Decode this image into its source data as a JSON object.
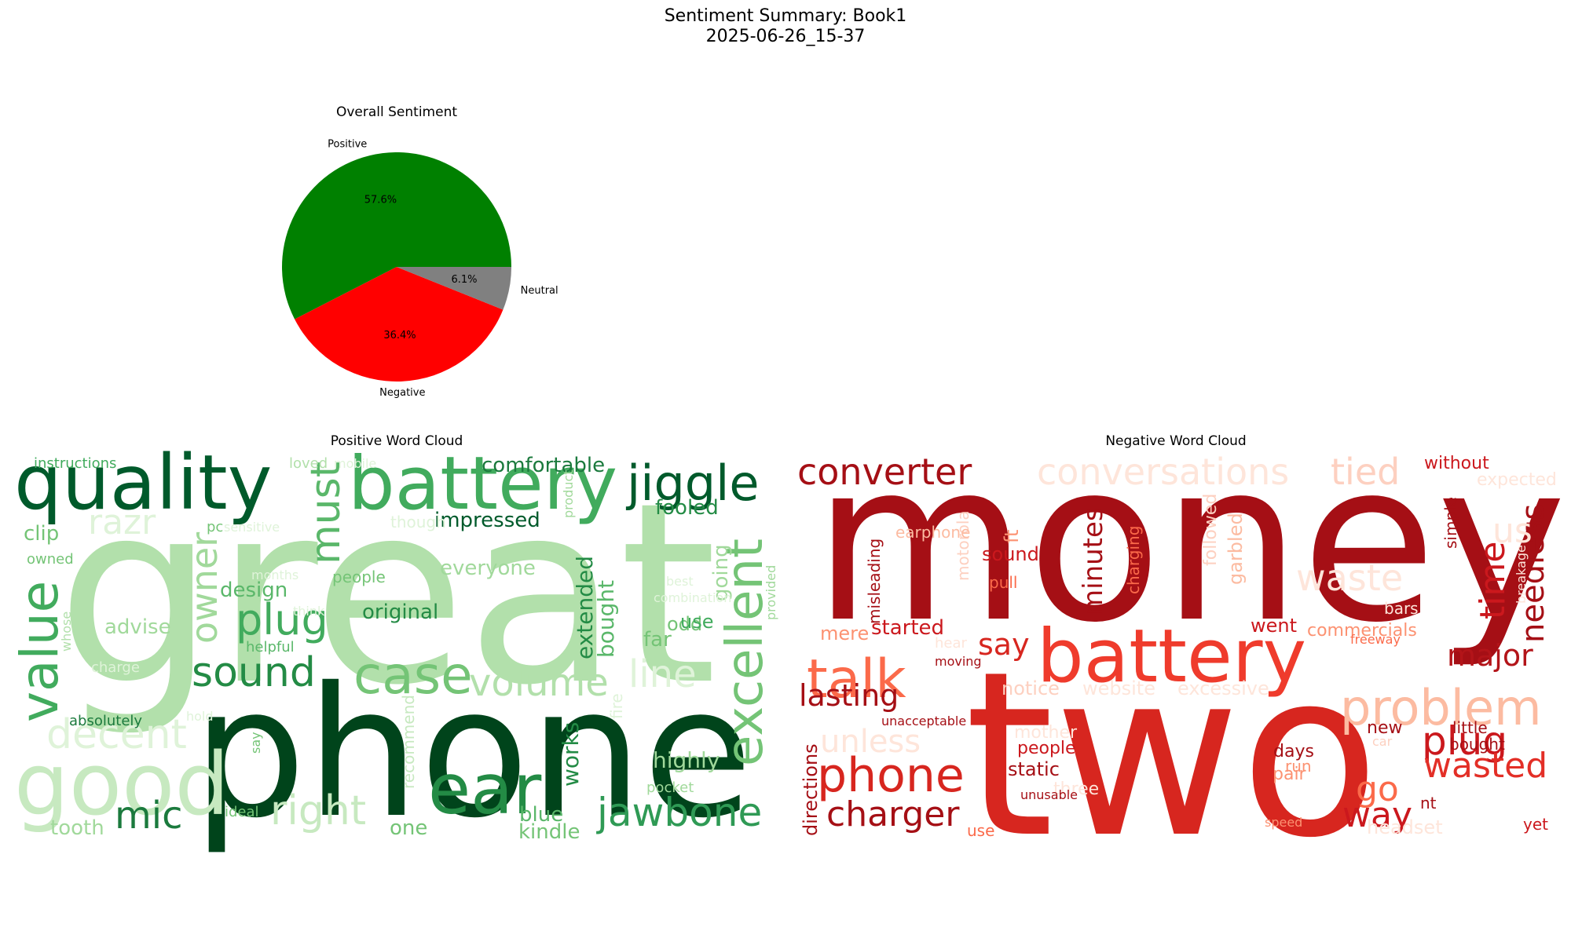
{
  "figure": {
    "title_line1": "Sentiment Summary: Book1",
    "title_line2": "2025-06-26_15-37"
  },
  "chart_data": [
    {
      "type": "pie",
      "title": "Overall Sentiment",
      "slices": [
        {
          "label": "Positive",
          "value": 57.6,
          "pct_label": "57.6%",
          "color": "#008000"
        },
        {
          "label": "Negative",
          "value": 36.4,
          "pct_label": "36.4%",
          "color": "#ff0000"
        },
        {
          "label": "Neutral",
          "value": 6.1,
          "pct_label": "6.1%",
          "color": "#808080"
        }
      ]
    },
    {
      "type": "wordcloud",
      "title": "Positive Word Cloud",
      "colormap": "Greens",
      "words": [
        "great",
        "phone",
        "quality",
        "battery",
        "good",
        "jiggle",
        "value",
        "ear",
        "excellent",
        "case",
        "sound",
        "plug",
        "mic",
        "jawbone",
        "volume",
        "owner",
        "must",
        "right",
        "decent",
        "line",
        "razr",
        "comfortable",
        "fooled",
        "impressed",
        "original",
        "design",
        "advise",
        "clip",
        "highly",
        "extended",
        "bought",
        "going",
        "works",
        "far",
        "odd",
        "use",
        "blue",
        "kindle",
        "tooth",
        "one",
        "everyone",
        "people",
        "though",
        "instructions",
        "loved",
        "mobile",
        "product",
        "owned",
        "pc",
        "sensitive",
        "months",
        "think",
        "helpful",
        "charge",
        "whose",
        "absolutely",
        "hold",
        "say",
        "recommend",
        "ideal",
        "pocket",
        "best",
        "combination",
        "provided",
        "fire"
      ]
    },
    {
      "type": "wordcloud",
      "title": "Negative Word Cloud",
      "colormap": "Reds",
      "words": [
        "money",
        "two",
        "battery",
        "talk",
        "converter",
        "conversations",
        "tied",
        "without",
        "problem",
        "waste",
        "phone",
        "plug",
        "wasted",
        "way",
        "charger",
        "lasting",
        "unless",
        "say",
        "minutes",
        "time",
        "needless",
        "major",
        "us",
        "sound",
        "pull",
        "ft",
        "garbled",
        "followed",
        "charging",
        "motorola",
        "earphone",
        "misleading",
        "started",
        "mere",
        "went",
        "commercials",
        "freeway",
        "bars",
        "simple",
        "breakage",
        "expected",
        "hear",
        "moving",
        "notice",
        "website",
        "excessive",
        "directions",
        "unacceptable",
        "mother",
        "people",
        "static",
        "three",
        "unusable",
        "days",
        "pair",
        "new",
        "car",
        "little",
        "bought",
        "run",
        "go",
        "nt",
        "speed",
        "headset",
        "use",
        "yet"
      ]
    }
  ]
}
